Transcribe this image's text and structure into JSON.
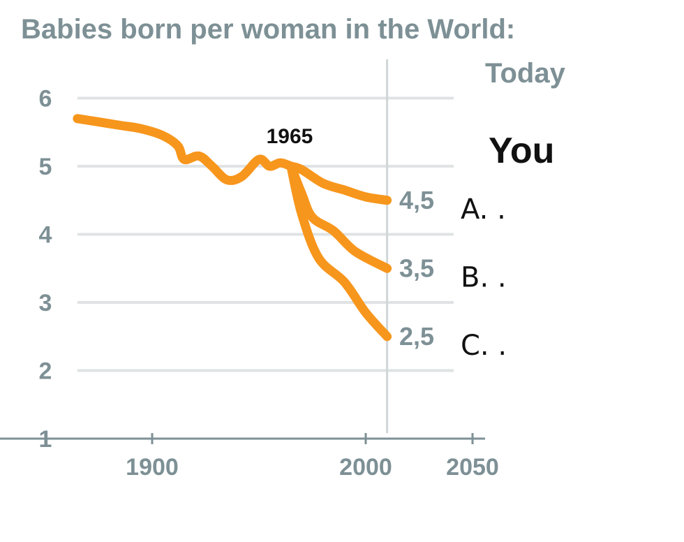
{
  "chart_data": {
    "type": "line",
    "title": "Babies born per woman in the World:",
    "xlabel": "",
    "ylabel": "",
    "xlim": [
      1865,
      2050
    ],
    "ylim": [
      1,
      6.2
    ],
    "x_ticks": [
      "1900",
      "2000",
      "2050"
    ],
    "y_ticks": [
      "1",
      "2",
      "3",
      "4",
      "5",
      "6"
    ],
    "grid": "horizontal",
    "colors": {
      "series": "#f7961c",
      "axis_text": "#7d9095",
      "grid": "#dfe3e4",
      "today_line": "#d0d6d8"
    },
    "today_marker": {
      "x": 2010,
      "label": "Today"
    },
    "you_label": "You",
    "annotation": {
      "x": 1965,
      "y": 5.0,
      "label": "1965"
    },
    "history": {
      "x": [
        1865,
        1875,
        1885,
        1895,
        1905,
        1912,
        1915,
        1922,
        1928,
        1935,
        1942,
        1950,
        1955,
        1960,
        1965
      ],
      "y": [
        5.7,
        5.65,
        5.6,
        5.55,
        5.45,
        5.3,
        5.1,
        5.15,
        5.0,
        4.8,
        4.85,
        5.1,
        5.0,
        5.05,
        5.0
      ]
    },
    "series": [
      {
        "label": "4,5",
        "option": "A. .",
        "x": [
          1965,
          1970,
          1980,
          1990,
          2000,
          2010
        ],
        "y": [
          5.0,
          4.95,
          4.75,
          4.65,
          4.55,
          4.5
        ]
      },
      {
        "label": "3,5",
        "option": "B. .",
        "x": [
          1965,
          1970,
          1975,
          1985,
          1995,
          2010
        ],
        "y": [
          5.0,
          4.6,
          4.25,
          4.05,
          3.75,
          3.5
        ]
      },
      {
        "label": "2,5",
        "option": "C. .",
        "x": [
          1965,
          1970,
          1978,
          1990,
          2000,
          2010
        ],
        "y": [
          5.0,
          4.3,
          3.65,
          3.3,
          2.85,
          2.5
        ]
      }
    ]
  }
}
